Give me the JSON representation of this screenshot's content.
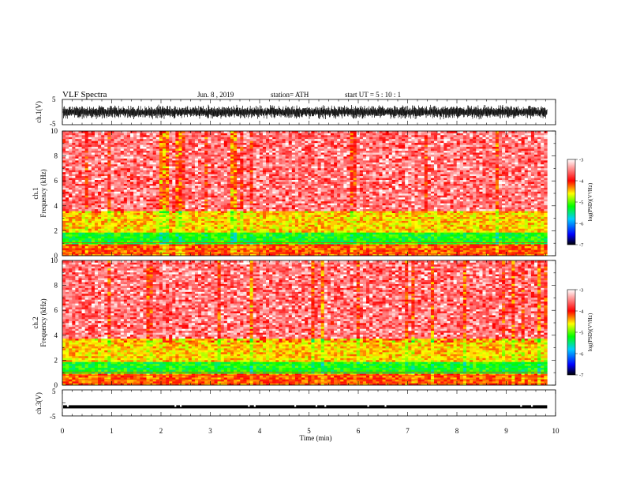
{
  "header": {
    "title": "VLF  Spectra",
    "date": "Jun. 8  , 2019",
    "station": "station= ATH",
    "start": "start  UT  =    5  : 10 : 1"
  },
  "chart_data": [
    {
      "type": "line",
      "name": "ch1-waveform",
      "ylabel": "ch.1(V)",
      "ylim": [
        -5,
        5
      ],
      "yticks": [
        "5",
        "-5"
      ],
      "xlim": [
        0,
        10
      ],
      "x_end": 9.83,
      "amplitude_approx": [
        -3,
        3
      ]
    },
    {
      "type": "heatmap",
      "name": "ch1-spectrogram",
      "ylabel": "ch.1\nFrequency  (kHz)",
      "ylabel_line1": "ch.1",
      "ylabel_line2": "Frequency  (kHz)",
      "ylim": [
        0,
        10
      ],
      "yticks": [
        "0",
        "2",
        "4",
        "6",
        "8",
        "10"
      ],
      "xlim": [
        0,
        10
      ],
      "x_end": 9.83,
      "bands_khz": [
        {
          "from": 0.0,
          "to": 0.9,
          "level": -4.2
        },
        {
          "from": 0.9,
          "to": 1.8,
          "level": -5.2
        },
        {
          "from": 1.8,
          "to": 3.6,
          "level": -4.5
        },
        {
          "from": 3.6,
          "to": 10.0,
          "level": -3.6
        }
      ],
      "colorbar": {
        "label": "log(PSD)(V²/Hz)",
        "range": [
          -7,
          -3
        ],
        "ticks": [
          "-3",
          "-4",
          "-5",
          "-6",
          "-7"
        ],
        "colors": [
          "#000000",
          "#0000ff",
          "#00ccff",
          "#00ff00",
          "#ffff00",
          "#ff0000",
          "#ffffff"
        ]
      }
    },
    {
      "type": "heatmap",
      "name": "ch2-spectrogram",
      "ylabel": "ch.2\nFrequency  (kHz)",
      "ylabel_line1": "ch.2",
      "ylabel_line2": "Frequency  (kHz)",
      "ylim": [
        0,
        10
      ],
      "yticks": [
        "0",
        "2",
        "4",
        "6",
        "8",
        "10"
      ],
      "xlim": [
        0,
        10
      ],
      "x_end": 9.83,
      "bands_khz": [
        {
          "from": 0.0,
          "to": 0.9,
          "level": -4.2
        },
        {
          "from": 0.9,
          "to": 1.9,
          "level": -5.2
        },
        {
          "from": 1.9,
          "to": 3.8,
          "level": -4.5
        },
        {
          "from": 3.8,
          "to": 10.0,
          "level": -3.6
        }
      ],
      "colorbar": {
        "label": "log(PSD)(V²/Hz)",
        "range": [
          -7,
          -3
        ],
        "ticks": [
          "-3",
          "-4",
          "-5",
          "-6",
          "-7"
        ],
        "colors": [
          "#000000",
          "#0000ff",
          "#00ccff",
          "#00ff00",
          "#ffff00",
          "#ff0000",
          "#ffffff"
        ]
      }
    },
    {
      "type": "line",
      "name": "ch3-signal",
      "ylabel": "ch.3(V)",
      "ylim": [
        -5,
        5
      ],
      "yticks": [
        "5",
        "-5"
      ],
      "xlim": [
        0,
        10
      ],
      "x_end": 9.83,
      "level_v": -1.5,
      "gaps_min": [
        0.11,
        2.29,
        2.4,
        3.78,
        3.9,
        4.72,
        5.15,
        5.33,
        6.2,
        6.55,
        9.3,
        9.52
      ]
    }
  ],
  "x_axis": {
    "label": "Time  (min)",
    "ticks": [
      "0",
      "1",
      "2",
      "3",
      "4",
      "5",
      "6",
      "7",
      "8",
      "9",
      "10"
    ]
  }
}
